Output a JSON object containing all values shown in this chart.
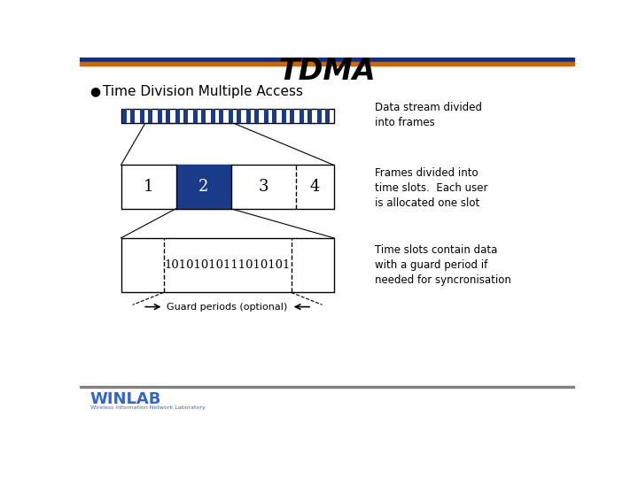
{
  "title": "TDMA",
  "bullet_text": "Time Division Multiple Access",
  "title_bar_top_color": "#003399",
  "title_bar_bot_color": "#cc6600",
  "bottom_bar_color": "#808080",
  "winlab_color": "#3366cc",
  "bg_color": "#ffffff",
  "stream_bar_color": "#1a3a8a",
  "slot2_color": "#1a3a8a",
  "slot2_label_color": "#ffffff",
  "label1": "1",
  "label2": "2",
  "label3": "3",
  "label4": "4",
  "bits_text": "10101010111010101",
  "annotation1": "Data stream divided\ninto frames",
  "annotation2": "Frames divided into\ntime slots.  Each user\nis allocated one slot",
  "annotation3": "Time slots contain data\nwith a guard period if\nneeded for syncronisation",
  "guard_text": "Guard periods (optional)"
}
